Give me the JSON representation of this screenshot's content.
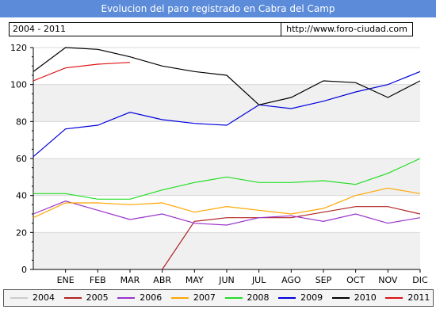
{
  "header": {
    "title": "Evolucion del paro registrado en Cabra del Camp",
    "range_label": "2004 - 2011",
    "url_label": "http://www.foro-ciudad.com"
  },
  "colors": {
    "title_bg": "#5b8bd9",
    "plot_band": "#f0f0f0",
    "grid": "#d8d8d8"
  },
  "chart_data": {
    "type": "line",
    "title": "Evolucion del paro registrado en Cabra del Camp",
    "categories": [
      "ENE",
      "FEB",
      "MAR",
      "ABR",
      "MAY",
      "JUN",
      "JUL",
      "AGO",
      "SEP",
      "OCT",
      "NOV",
      "DIC"
    ],
    "yticks": [
      0,
      20,
      40,
      60,
      80,
      100,
      120
    ],
    "ylim": [
      0,
      120
    ],
    "grid": true,
    "legend_position": "bottom",
    "series": [
      {
        "name": "2004",
        "color": "#cccccc",
        "values": [
          null,
          null,
          null,
          null,
          null,
          null,
          null,
          null,
          null,
          null,
          null,
          null
        ]
      },
      {
        "name": "2005",
        "color": "#b22222",
        "values": [
          null,
          null,
          null,
          0,
          26,
          28,
          28,
          28,
          31,
          34,
          34,
          30
        ]
      },
      {
        "name": "2006",
        "color": "#9932cc",
        "values": [
          37,
          32,
          27,
          30,
          25,
          24,
          28,
          29,
          26,
          30,
          25,
          28
        ]
      },
      {
        "name": "2007",
        "color": "#ffa500",
        "values": [
          36,
          36,
          35,
          36,
          31,
          34,
          32,
          30,
          33,
          40,
          44,
          41
        ]
      },
      {
        "name": "2008",
        "color": "#22dd22",
        "values": [
          41,
          38,
          38,
          43,
          47,
          50,
          47,
          47,
          48,
          46,
          52,
          60
        ]
      },
      {
        "name": "2009",
        "color": "#0000dd",
        "values": [
          76,
          78,
          85,
          81,
          79,
          78,
          89,
          87,
          91,
          96,
          100,
          107
        ]
      },
      {
        "name": "2010",
        "color": "#000000",
        "values": [
          120,
          119,
          115,
          110,
          107,
          105,
          89,
          93,
          102,
          101,
          93,
          102
        ]
      },
      {
        "name": "2011",
        "color": "#dd1111",
        "values": [
          109,
          111,
          112,
          null,
          null,
          null,
          null,
          null,
          null,
          null,
          null,
          null
        ]
      }
    ],
    "start_values": {
      "2006": 30,
      "2007": 28,
      "2008": 41,
      "2009": 61,
      "2010": 107,
      "2011": 102
    }
  }
}
